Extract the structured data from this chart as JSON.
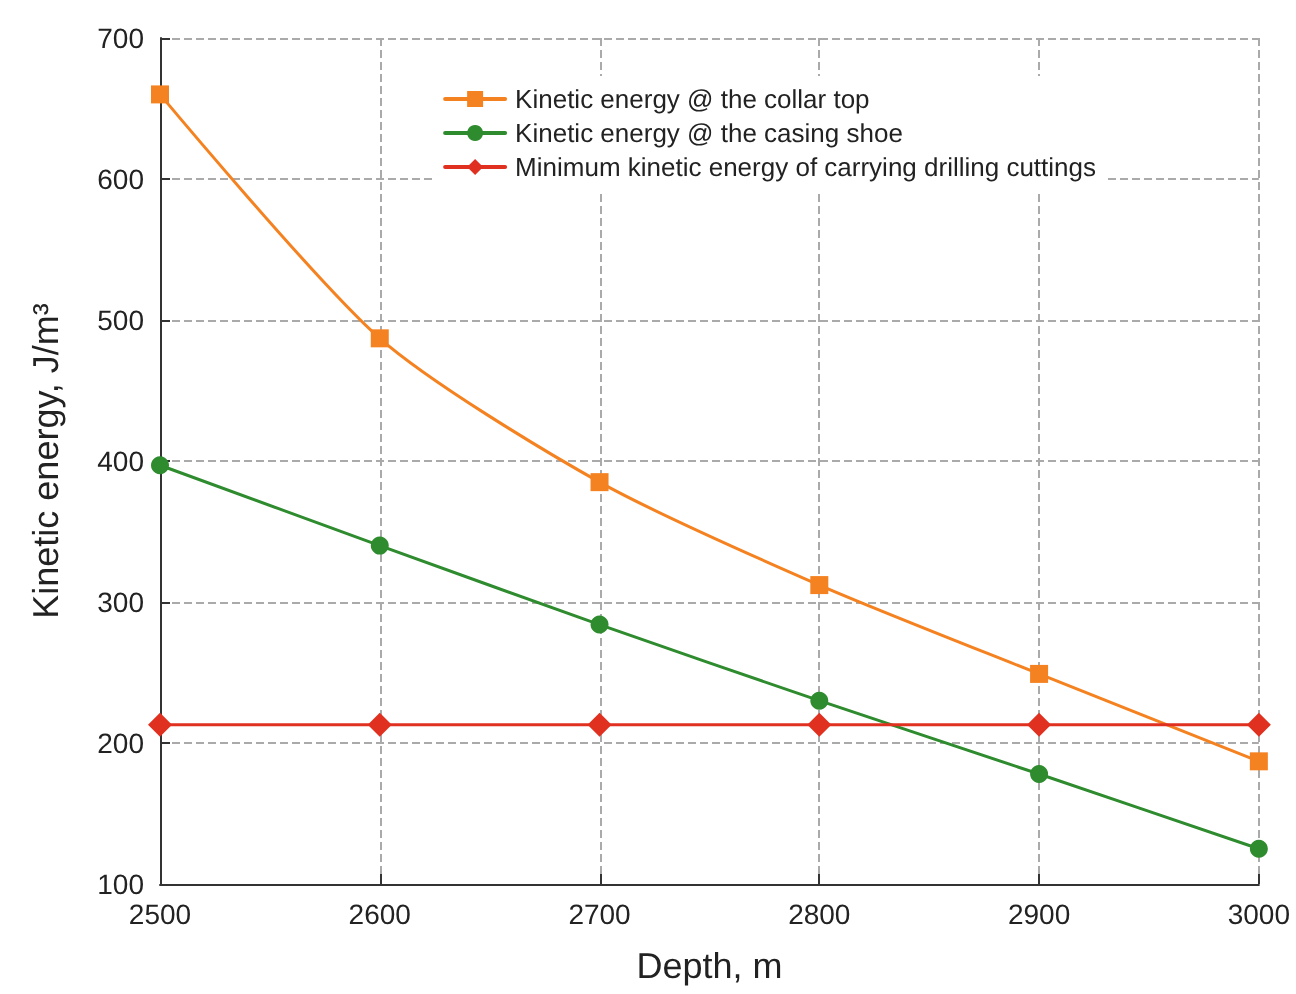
{
  "chart_data": {
    "type": "line",
    "xlabel": "Depth, m",
    "ylabel": "Kinetic energy, J/m³",
    "x": [
      2500,
      2600,
      2700,
      2800,
      2900,
      3000
    ],
    "series": [
      {
        "name": "Kinetic energy @ the collar top",
        "color": "#f58220",
        "marker": "square",
        "values": [
          660,
          487,
          385,
          312,
          249,
          187
        ]
      },
      {
        "name": "Kinetic energy @ the casing shoe",
        "color": "#2e8b2e",
        "marker": "circle",
        "values": [
          397,
          340,
          284,
          230,
          178,
          125
        ]
      },
      {
        "name": "Minimum kinetic energy of carrying drilling cuttings",
        "color": "#e03020",
        "marker": "diamond",
        "values": [
          213,
          213,
          213,
          213,
          213,
          213
        ]
      }
    ],
    "xlim": [
      2500,
      3000
    ],
    "xticks": [
      2500,
      2600,
      2700,
      2800,
      2900,
      3000
    ],
    "ylim": [
      100,
      700
    ],
    "yticks": [
      100,
      200,
      300,
      400,
      500,
      600,
      700
    ],
    "grid": true,
    "legend": "top right",
    "line_style": "solid"
  }
}
